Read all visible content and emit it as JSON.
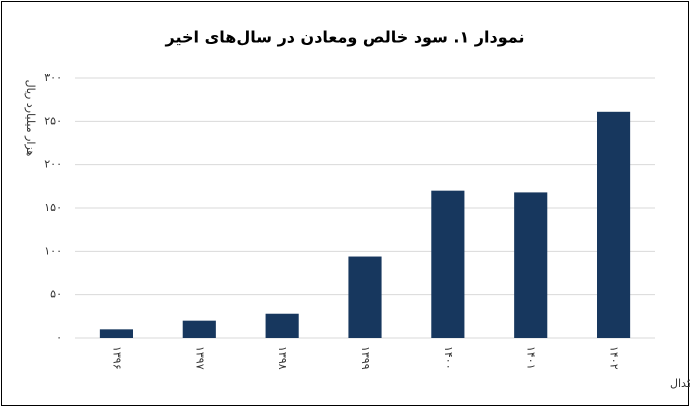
{
  "chart_data": {
    "type": "bar",
    "title": "نمودار ۱. سود خالص ومعادن در سال‌های اخیر",
    "y_label": "هزار میلیارد ریال",
    "source": "منبع: کدال",
    "categories": [
      "۱۳۹۶",
      "۱۳۹۷",
      "۱۳۹۸",
      "۱۳۹۹",
      "۱۴۰۰",
      "۱۴۰۱",
      "۱۴۰۲"
    ],
    "values": [
      10,
      20,
      28,
      94,
      170,
      168,
      261
    ],
    "color": "#17375e",
    "ylim": [
      0,
      300
    ],
    "yticks": [
      {
        "value": 0,
        "label": "۰"
      },
      {
        "value": 50,
        "label": "۵۰"
      },
      {
        "value": 100,
        "label": "۱۰۰"
      },
      {
        "value": 150,
        "label": "۱۵۰"
      },
      {
        "value": 200,
        "label": "۲۰۰"
      },
      {
        "value": 250,
        "label": "۲۵۰"
      },
      {
        "value": 300,
        "label": "۳۰۰"
      }
    ],
    "grid": true
  }
}
